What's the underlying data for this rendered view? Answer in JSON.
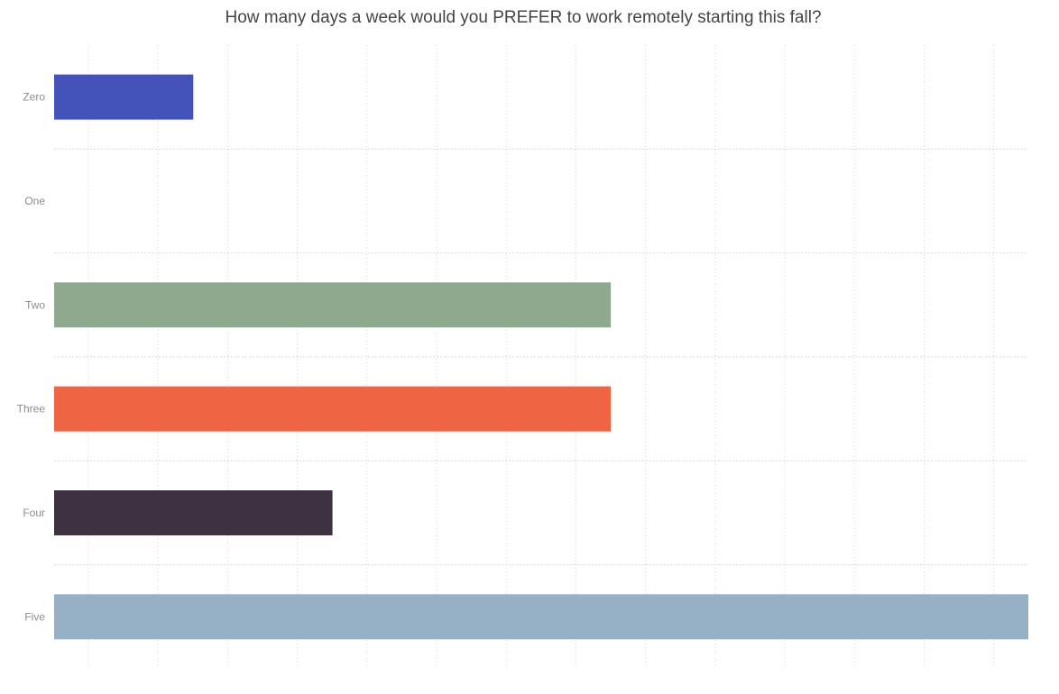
{
  "chart_data": {
    "type": "bar",
    "orientation": "horizontal",
    "title": "How many days a week would you PREFER to work remotely starting this fall?",
    "categories": [
      "Zero",
      "One",
      "Two",
      "Three",
      "Four",
      "Five"
    ],
    "values": [
      2,
      0,
      8,
      8,
      4,
      14
    ],
    "colors": [
      "#4353ba",
      "#cccccc",
      "#8ea98e",
      "#ef6543",
      "#3d3142",
      "#96b1c6"
    ],
    "xlim": [
      0,
      14
    ],
    "grid": true,
    "legend": "none"
  }
}
